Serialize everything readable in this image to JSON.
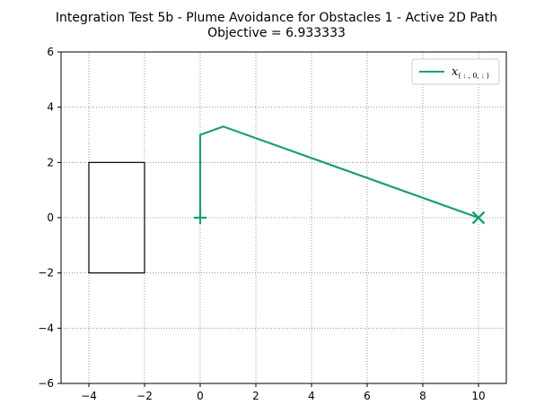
{
  "chart_data": {
    "type": "line",
    "title": "Integration Test 5b - Plume Avoidance for Obstacles 1 - Active 2D Path",
    "subtitle": "Objective = 6.933333",
    "xlabel": "",
    "ylabel": "",
    "xlim": [
      -5,
      11
    ],
    "ylim": [
      -6,
      6
    ],
    "xticks": [
      -4,
      -2,
      0,
      2,
      4,
      6,
      8,
      10
    ],
    "yticks": [
      -6,
      -4,
      -2,
      0,
      2,
      4,
      6
    ],
    "xtick_labels": [
      "−4",
      "−2",
      "0",
      "2",
      "4",
      "6",
      "8",
      "10"
    ],
    "ytick_labels": [
      "−6",
      "−4",
      "−2",
      "0",
      "2",
      "4",
      "6"
    ],
    "grid": true,
    "legend_position": "top-right",
    "series": [
      {
        "name": "x",
        "name_subscript": "( : , 0, : )",
        "color": "#1b9e77",
        "x": [
          0,
          0,
          0.83,
          10
        ],
        "y": [
          0,
          3,
          3.3,
          0
        ],
        "start_marker": {
          "x": 0,
          "y": 0,
          "symbol": "plus"
        },
        "end_marker": {
          "x": 10,
          "y": 0,
          "symbol": "x"
        }
      }
    ],
    "obstacles": [
      {
        "shape": "rectangle",
        "x": [
          -4,
          -2
        ],
        "y": [
          -2,
          2
        ],
        "color": "#000000"
      }
    ]
  }
}
